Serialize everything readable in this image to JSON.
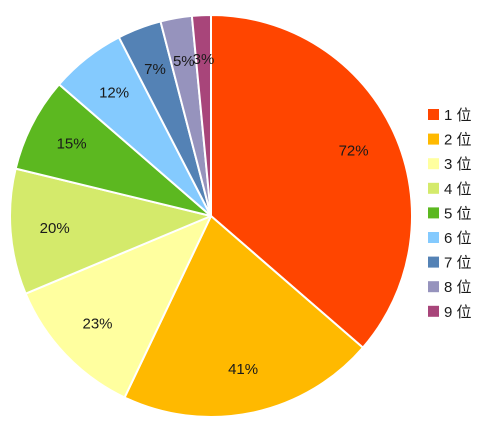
{
  "chart_data": {
    "type": "pie",
    "title": "",
    "categories": [
      "1 位",
      "2 位",
      "3 位",
      "4 位",
      "5 位",
      "6 位",
      "7 位",
      "8 位",
      "9 位"
    ],
    "values": [
      72,
      41,
      23,
      20,
      15,
      12,
      7,
      5,
      3
    ],
    "labels": [
      "72%",
      "41%",
      "23%",
      "20%",
      "15%",
      "12%",
      "7%",
      "5%",
      "3%"
    ],
    "colors": [
      "#ff4500",
      "#ffb900",
      "#ffff9f",
      "#d4ea6b",
      "#5cb820",
      "#84cafe",
      "#5482b5",
      "#9693bd",
      "#a8457a"
    ],
    "start_angle_deg": 0,
    "direction": "clockwise",
    "legend_position": "right"
  }
}
